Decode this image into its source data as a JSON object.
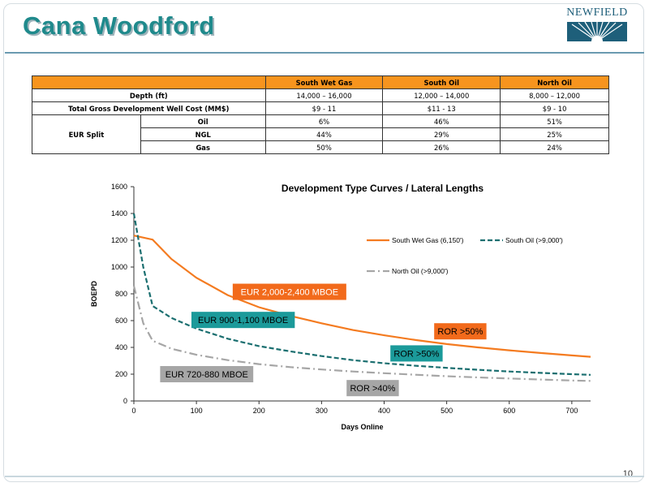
{
  "slide": {
    "title": "Cana Woodford",
    "logo_text": "NEWFIELD",
    "page_number": "10"
  },
  "table": {
    "columns": [
      "South Wet Gas",
      "South Oil",
      "North Oil"
    ],
    "rows": {
      "depth": {
        "label": "Depth (ft)",
        "values": [
          "14,000 – 16,000",
          "12,000 – 14,000",
          "8,000 – 12,000"
        ]
      },
      "cost": {
        "label": "Total Gross Development Well Cost (MM$)",
        "values": [
          "$9 - 11",
          "$11 - 13",
          "$9 - 10"
        ]
      },
      "eur_label": "EUR Split",
      "oil": {
        "label": "Oil",
        "values": [
          "6%",
          "46%",
          "51%"
        ]
      },
      "ngl": {
        "label": "NGL",
        "values": [
          "44%",
          "29%",
          "25%"
        ]
      },
      "gas": {
        "label": "Gas",
        "values": [
          "50%",
          "26%",
          "24%"
        ]
      }
    }
  },
  "chart_data": {
    "type": "line",
    "title": "Development Type Curves / Lateral Lengths",
    "xlabel": "Days Online",
    "ylabel": "BOEPD",
    "xlim": [
      0,
      730
    ],
    "ylim": [
      0,
      1600
    ],
    "x_ticks": [
      0,
      100,
      200,
      300,
      400,
      500,
      600,
      700
    ],
    "y_ticks": [
      0,
      200,
      400,
      600,
      800,
      1000,
      1200,
      1400,
      1600
    ],
    "grid": false,
    "legend_position": "upper-right",
    "series": [
      {
        "name": "South Wet Gas (6,150')",
        "color": "#f47b20",
        "dash": "solid",
        "x": [
          0,
          30,
          60,
          100,
          150,
          200,
          250,
          300,
          350,
          400,
          450,
          500,
          550,
          600,
          650,
          700,
          730
        ],
        "y": [
          1235,
          1205,
          1060,
          920,
          790,
          700,
          635,
          580,
          530,
          490,
          455,
          425,
          400,
          378,
          358,
          340,
          330
        ]
      },
      {
        "name": "South Oil (>9,000')",
        "color": "#1b6f70",
        "dash": "dashed",
        "x": [
          0,
          15,
          30,
          60,
          100,
          150,
          200,
          250,
          300,
          350,
          400,
          450,
          500,
          550,
          600,
          650,
          700,
          730
        ],
        "y": [
          1400,
          1000,
          710,
          620,
          540,
          465,
          410,
          370,
          335,
          305,
          282,
          263,
          247,
          233,
          220,
          210,
          200,
          195
        ]
      },
      {
        "name": "North Oil (>9,000')",
        "color": "#a6a6a6",
        "dash": "dashdot",
        "x": [
          0,
          15,
          30,
          60,
          100,
          150,
          200,
          250,
          300,
          350,
          400,
          450,
          500,
          550,
          600,
          650,
          700,
          730
        ],
        "y": [
          860,
          580,
          450,
          390,
          345,
          305,
          275,
          253,
          235,
          220,
          207,
          196,
          185,
          176,
          168,
          160,
          153,
          150
        ]
      }
    ],
    "annotations": [
      {
        "text": "EUR 2,000-2,400 MBOE",
        "bg": "#f26a1b",
        "fg": "#ffffff",
        "x": 158,
        "y": 815
      },
      {
        "text": "EUR 900-1,100 MBOE",
        "bg": "#1b9a9a",
        "fg": "#000000",
        "x": 92,
        "y": 605
      },
      {
        "text": "EUR 720-880 MBOE",
        "bg": "#a6a6a6",
        "fg": "#000000",
        "x": 42,
        "y": 200
      },
      {
        "text": "ROR >50%",
        "bg": "#f26a1b",
        "fg": "#000000",
        "x": 480,
        "y": 520
      },
      {
        "text": "ROR >50%",
        "bg": "#1b9a9a",
        "fg": "#000000",
        "x": 410,
        "y": 355
      },
      {
        "text": "ROR >40%",
        "bg": "#a6a6a6",
        "fg": "#000000",
        "x": 340,
        "y": 96
      }
    ]
  }
}
